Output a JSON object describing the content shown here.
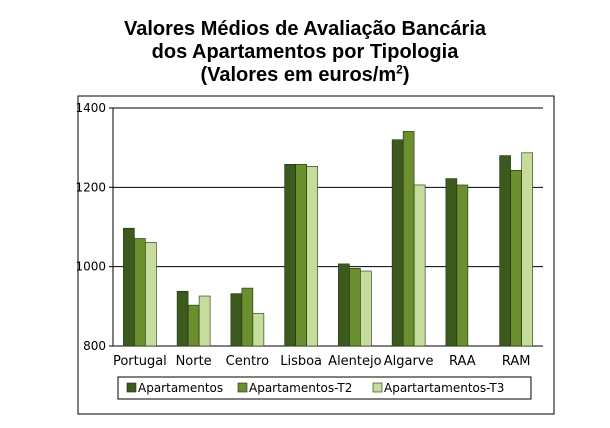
{
  "title": {
    "line1": "Valores Médios de Avaliação Bancária",
    "line2": "dos Apartamentos por Tipologia",
    "line3_prefix": "(Valores em euros/m",
    "line3_sup": "2",
    "line3_suffix": ")"
  },
  "chart_data": {
    "type": "bar",
    "title": "Valores Médios de Avaliação Bancária dos Apartamentos por Tipologia (Valores em euros/m2)",
    "categories": [
      "Portugal",
      "Norte",
      "Centro",
      "Lisboa",
      "Alentejo",
      "Algarve",
      "RAA",
      "RAM"
    ],
    "series": [
      {
        "name": "Apartamentos",
        "color": "#3d5a1e",
        "values": [
          1097,
          938,
          932,
          1258,
          1007,
          1320,
          1222,
          1280
        ]
      },
      {
        "name": "Apartamentos-T2",
        "color": "#6b8f2e",
        "values": [
          1071,
          903,
          946,
          1258,
          996,
          1341,
          1206,
          1243
        ]
      },
      {
        "name": "Apartartamentos-T3",
        "color": "#c5dc9c",
        "values": [
          1061,
          926,
          882,
          1253,
          989,
          1206,
          null,
          1287
        ]
      }
    ],
    "yticks": [
      800,
      1000,
      1200,
      1400
    ],
    "ylim": [
      800,
      1400
    ],
    "grid": true,
    "legend_position": "bottom"
  }
}
